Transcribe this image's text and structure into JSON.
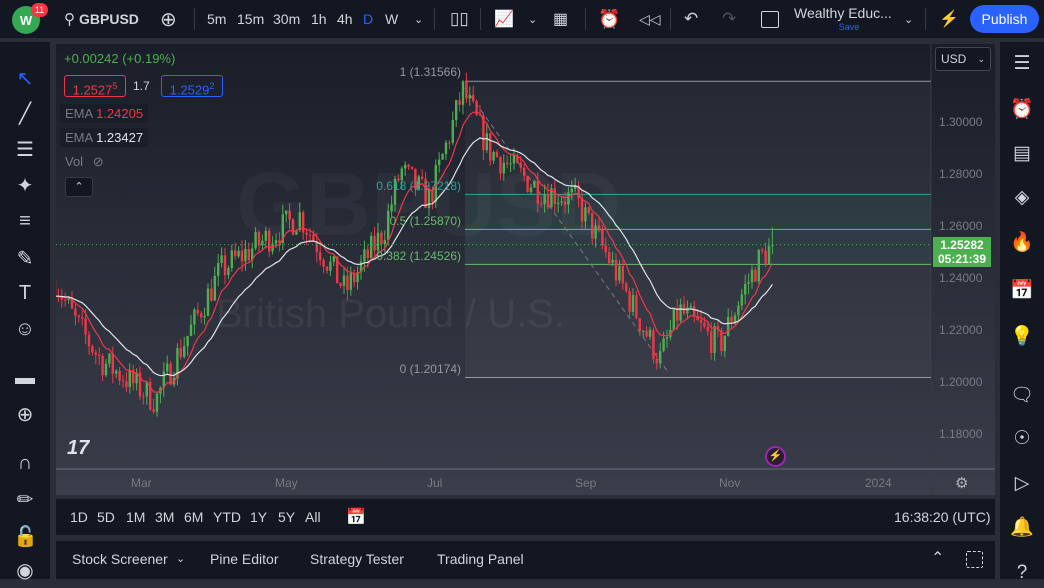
{
  "topbar": {
    "notifications": "11",
    "symbol": "GBPUSD",
    "timeframes": [
      "5m",
      "15m",
      "30m",
      "1h",
      "4h",
      "D",
      "W"
    ],
    "active_timeframe": "D",
    "layout_name": "Wealthy Educ...",
    "save_label": "Save",
    "publish_label": "Publish"
  },
  "legend": {
    "change": "+0.00242 (+0.19%)",
    "bid": "1.2527",
    "bid_sup": "5",
    "spread": "1.7",
    "ask": "1.2529",
    "ask_sup": "2",
    "ema1_label": "EMA",
    "ema1_value": "1.24205",
    "ema2_label": "EMA",
    "ema2_value": "1.23427",
    "vol_label": "Vol"
  },
  "watermark": {
    "symbol": "GBPUSD",
    "description": "British Pound / U.S."
  },
  "price_axis": {
    "currency": "USD",
    "ticks": [
      "1.30000",
      "1.28000",
      "1.26000",
      "1.24000",
      "1.22000",
      "1.20000",
      "1.18000"
    ],
    "last_price": "1.25282",
    "countdown": "05:21:39"
  },
  "time_axis": {
    "ticks": [
      "Mar",
      "May",
      "Jul",
      "Sep",
      "Nov",
      "2024"
    ]
  },
  "fib": {
    "levels": [
      {
        "label": "1 (1.31566)",
        "price": 1.31566
      },
      {
        "label": "0.618 (1.27218)",
        "price": 1.27218
      },
      {
        "label": "0.5 (1.25870)",
        "price": 1.2587
      },
      {
        "label": "0.382 (1.24526)",
        "price": 1.24526
      },
      {
        "label": "0 (1.20174)",
        "price": 1.20174
      }
    ]
  },
  "colors": {
    "up": "#4caf50",
    "down": "#f23645",
    "ema_fast": "#f23645",
    "ema_slow": "#e0e3eb",
    "accent": "#2962ff",
    "fib_teal": "#26a69a",
    "fib_green": "#66bb6a"
  },
  "chart_data": {
    "type": "candlestick",
    "symbol": "GBPUSD",
    "interval": "D",
    "ylim": [
      1.17,
      1.325
    ],
    "close_path": [
      [
        "2023-01-25",
        1.239
      ],
      [
        "2023-02-02",
        1.224
      ],
      [
        "2023-02-13",
        1.2085
      ],
      [
        "2023-03-08",
        1.193
      ],
      [
        "2023-03-14",
        1.2046
      ],
      [
        "2023-04-04",
        1.243
      ],
      [
        "2023-05-07",
        1.264
      ],
      [
        "2023-05-26",
        1.235
      ],
      [
        "2023-06-11",
        1.258
      ],
      [
        "2023-06-18",
        1.2815
      ],
      [
        "2023-06-30",
        1.27
      ],
      [
        "2023-07-14",
        1.312
      ],
      [
        "2023-07-25",
        1.289
      ],
      [
        "2023-08-15",
        1.274
      ],
      [
        "2023-08-30",
        1.27
      ],
      [
        "2023-09-13",
        1.247
      ],
      [
        "2023-10-04",
        1.2085
      ],
      [
        "2023-10-12",
        1.2277
      ],
      [
        "2023-10-29",
        1.214
      ],
      [
        "2023-11-06",
        1.2315
      ],
      [
        "2023-11-15",
        1.248
      ],
      [
        "2023-11-21",
        1.2528
      ]
    ]
  },
  "bottom": {
    "ranges": [
      "1D",
      "5D",
      "1M",
      "3M",
      "6M",
      "YTD",
      "1Y",
      "5Y",
      "All"
    ],
    "clock": "16:38:20 (UTC)"
  },
  "panels": {
    "tabs": [
      "Stock Screener",
      "Pine Editor",
      "Strategy Tester",
      "Trading Panel"
    ]
  }
}
